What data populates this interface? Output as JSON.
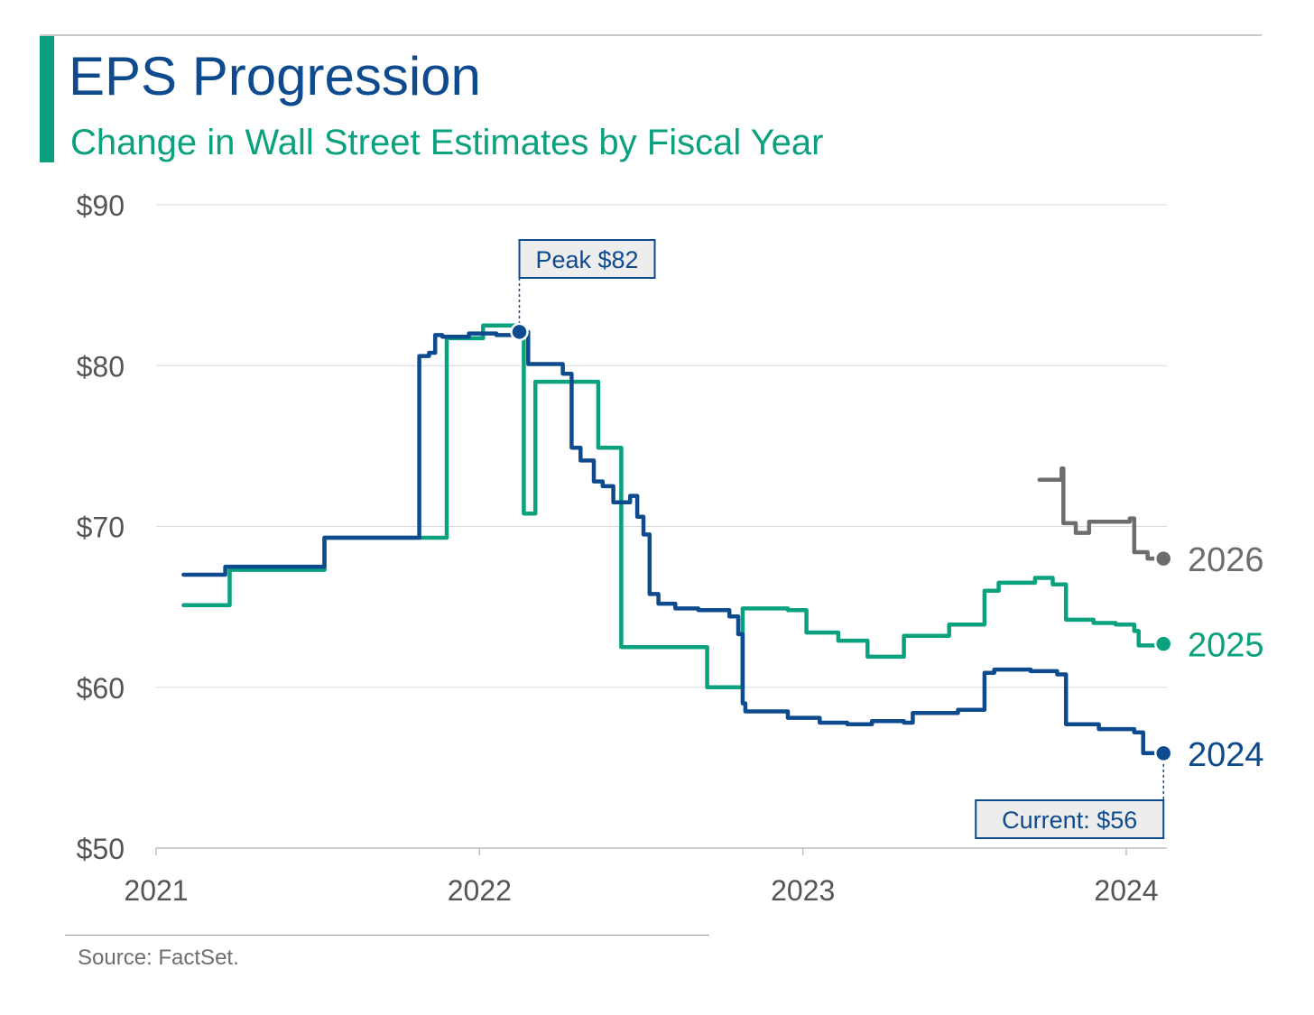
{
  "header": {
    "title": "EPS Progression",
    "subtitle": "Change in Wall Street Estimates by Fiscal Year"
  },
  "footer": {
    "source": "Source: FactSet."
  },
  "colors": {
    "fy2024": "#0d4a8e",
    "fy2025": "#0aa17e",
    "fy2026": "#6d6d6d",
    "accent": "#0aa17e",
    "grid": "#d9d9d9"
  },
  "chart_data": {
    "type": "line",
    "title": "EPS Progression",
    "subtitle": "Change in Wall Street Estimates by Fiscal Year",
    "xlabel": "",
    "ylabel": "",
    "ylim": [
      50,
      90
    ],
    "xlim": [
      "2021-01-01",
      "2024-02-15"
    ],
    "yticks": [
      50,
      60,
      70,
      80,
      90
    ],
    "ytick_labels": [
      "$50",
      "$60",
      "$70",
      "$80",
      "$90"
    ],
    "xticks": [
      "2021-01-01",
      "2022-01-01",
      "2023-01-01",
      "2024-01-01"
    ],
    "xtick_labels": [
      "2021",
      "2022",
      "2023",
      "2024"
    ],
    "grid": true,
    "step": true,
    "series": [
      {
        "name": "2024",
        "color": "#0d4a8e",
        "points": [
          [
            "2021-02-01",
            67.0
          ],
          [
            "2021-03-20",
            67.5
          ],
          [
            "2021-07-10",
            69.3
          ],
          [
            "2021-10-25",
            80.6
          ],
          [
            "2021-11-05",
            80.8
          ],
          [
            "2021-11-12",
            81.9
          ],
          [
            "2021-11-20",
            81.8
          ],
          [
            "2021-12-20",
            82.0
          ],
          [
            "2022-01-20",
            81.9
          ],
          [
            "2022-02-15",
            82.1
          ],
          [
            "2022-02-25",
            80.1
          ],
          [
            "2022-03-15",
            80.1
          ],
          [
            "2022-04-05",
            79.5
          ],
          [
            "2022-04-15",
            74.9
          ],
          [
            "2022-04-25",
            74.1
          ],
          [
            "2022-05-10",
            72.8
          ],
          [
            "2022-05-20",
            72.5
          ],
          [
            "2022-06-01",
            71.5
          ],
          [
            "2022-06-20",
            71.9
          ],
          [
            "2022-06-28",
            70.6
          ],
          [
            "2022-07-05",
            69.5
          ],
          [
            "2022-07-12",
            65.8
          ],
          [
            "2022-07-22",
            65.2
          ],
          [
            "2022-08-10",
            64.9
          ],
          [
            "2022-09-05",
            64.8
          ],
          [
            "2022-10-10",
            64.4
          ],
          [
            "2022-10-20",
            63.3
          ],
          [
            "2022-10-25",
            59.0
          ],
          [
            "2022-10-28",
            58.5
          ],
          [
            "2022-12-15",
            58.1
          ],
          [
            "2023-01-20",
            57.8
          ],
          [
            "2023-02-20",
            57.7
          ],
          [
            "2023-03-20",
            57.9
          ],
          [
            "2023-04-25",
            57.8
          ],
          [
            "2023-05-05",
            58.4
          ],
          [
            "2023-06-25",
            58.6
          ],
          [
            "2023-07-25",
            60.9
          ],
          [
            "2023-08-05",
            61.1
          ],
          [
            "2023-09-15",
            61.0
          ],
          [
            "2023-10-15",
            60.8
          ],
          [
            "2023-10-25",
            57.7
          ],
          [
            "2023-12-01",
            57.4
          ],
          [
            "2024-01-10",
            57.2
          ],
          [
            "2024-01-20",
            55.9
          ],
          [
            "2024-02-12",
            55.9
          ]
        ]
      },
      {
        "name": "2025",
        "color": "#0aa17e",
        "points": [
          [
            "2021-02-01",
            65.1
          ],
          [
            "2021-03-25",
            67.3
          ],
          [
            "2021-07-10",
            69.3
          ],
          [
            "2021-11-25",
            81.7
          ],
          [
            "2022-01-05",
            82.5
          ],
          [
            "2022-02-15",
            82.2
          ],
          [
            "2022-02-20",
            70.8
          ],
          [
            "2022-03-05",
            79.0
          ],
          [
            "2022-05-15",
            74.9
          ],
          [
            "2022-06-10",
            62.5
          ],
          [
            "2022-09-15",
            60.0
          ],
          [
            "2022-10-25",
            64.9
          ],
          [
            "2022-12-15",
            64.8
          ],
          [
            "2023-01-05",
            63.4
          ],
          [
            "2023-02-10",
            62.9
          ],
          [
            "2023-03-15",
            61.9
          ],
          [
            "2023-04-25",
            63.2
          ],
          [
            "2023-06-15",
            63.9
          ],
          [
            "2023-07-25",
            66.0
          ],
          [
            "2023-08-10",
            66.5
          ],
          [
            "2023-09-20",
            66.8
          ],
          [
            "2023-10-10",
            66.4
          ],
          [
            "2023-10-25",
            64.2
          ],
          [
            "2023-11-25",
            64.0
          ],
          [
            "2023-12-20",
            63.9
          ],
          [
            "2024-01-10",
            63.5
          ],
          [
            "2024-01-15",
            62.6
          ],
          [
            "2024-02-12",
            62.7
          ]
        ]
      },
      {
        "name": "2026",
        "color": "#6d6d6d",
        "points": [
          [
            "2023-09-25",
            72.9
          ],
          [
            "2023-10-20",
            73.6
          ],
          [
            "2023-10-22",
            70.2
          ],
          [
            "2023-11-05",
            69.6
          ],
          [
            "2023-11-20",
            70.3
          ],
          [
            "2023-12-05",
            70.3
          ],
          [
            "2024-01-05",
            70.5
          ],
          [
            "2024-01-10",
            68.4
          ],
          [
            "2024-01-25",
            68.0
          ],
          [
            "2024-02-12",
            68.0
          ]
        ]
      }
    ],
    "annotations": [
      {
        "text": "Peak $82",
        "date": "2022-02-15",
        "value": 82.1,
        "series": "2024",
        "placement": "above"
      },
      {
        "text": "Current: $56",
        "date": "2024-02-12",
        "value": 55.9,
        "series": "2024",
        "placement": "below"
      }
    ],
    "legend": {
      "placement": "right-end-labels"
    }
  }
}
